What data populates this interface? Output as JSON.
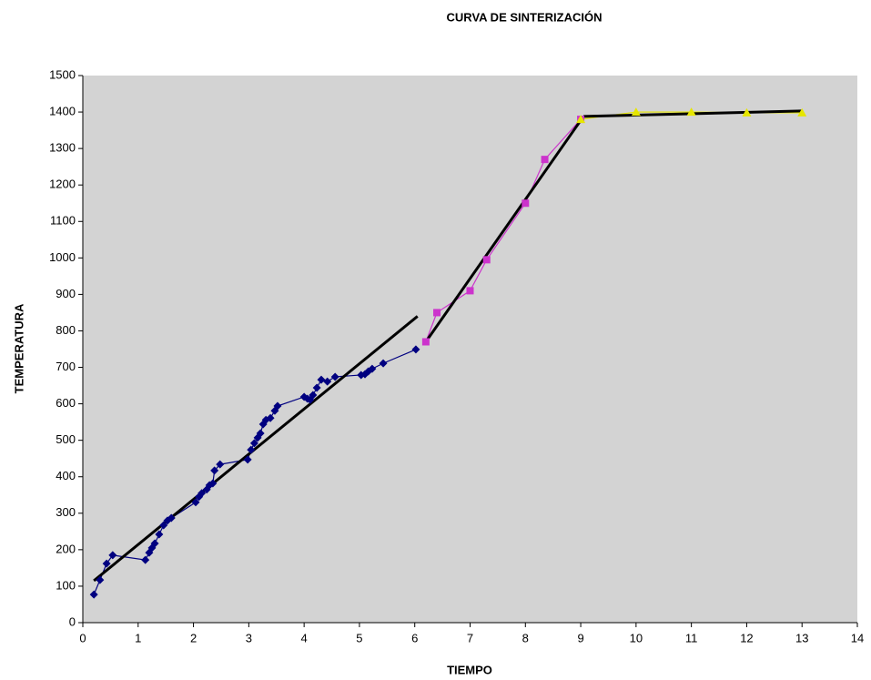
{
  "chart_data": {
    "type": "line",
    "title": "CURVA DE SINTERIZACIÓN",
    "xlabel": "TIEMPO",
    "ylabel": "TEMPERATURA",
    "xlim": [
      0,
      14
    ],
    "xticks": [
      0,
      1,
      2,
      3,
      4,
      5,
      6,
      7,
      8,
      9,
      10,
      11,
      12,
      13,
      14
    ],
    "ylim": [
      0,
      1500
    ],
    "yticks": [
      0,
      100,
      200,
      300,
      400,
      500,
      600,
      700,
      800,
      900,
      1000,
      1100,
      1200,
      1300,
      1400,
      1500
    ],
    "grid": false,
    "plot_background": "#d3d3d3",
    "series": [
      {
        "color": "#000080",
        "marker": "diamond",
        "x": [
          0.2,
          0.31,
          0.43,
          0.54,
          1.13,
          1.2,
          1.25,
          1.3,
          1.38,
          1.46,
          1.53,
          1.6,
          2.04,
          2.1,
          2.15,
          2.24,
          2.29,
          2.35,
          2.38,
          2.48,
          2.98,
          3.04,
          3.1,
          3.16,
          3.21,
          3.26,
          3.31,
          3.39,
          3.47,
          3.52,
          4.0,
          4.06,
          4.11,
          4.16,
          4.23,
          4.31,
          4.42,
          4.56,
          5.03,
          5.1,
          5.16,
          5.23,
          5.43,
          6.02
        ],
        "values": [
          77,
          117,
          162,
          185,
          172,
          192,
          205,
          217,
          242,
          267,
          280,
          287,
          330,
          345,
          355,
          365,
          377,
          382,
          417,
          434,
          447,
          474,
          492,
          507,
          519,
          544,
          556,
          561,
          581,
          594,
          619,
          614,
          611,
          624,
          644,
          666,
          661,
          674,
          679,
          681,
          689,
          696,
          711,
          749
        ]
      },
      {
        "color": "#cc33cc",
        "marker": "square",
        "x": [
          6.2,
          6.4,
          7,
          7.3,
          8,
          8.35,
          9
        ],
        "values": [
          770,
          850,
          910,
          995,
          1150,
          1270,
          1380
        ]
      },
      {
        "color": "#e6e600",
        "marker": "triangle",
        "x": [
          9,
          10,
          11,
          12,
          13
        ],
        "values": [
          1380,
          1400,
          1400,
          1398,
          1398
        ]
      }
    ],
    "trendlines": [
      {
        "color": "#000000",
        "x": [
          0.2,
          6.05
        ],
        "values": [
          115,
          840
        ]
      },
      {
        "color": "#000000",
        "x": [
          6.2,
          9.05
        ],
        "values": [
          770,
          1388
        ]
      },
      {
        "color": "#000000",
        "x": [
          9.05,
          13
        ],
        "values": [
          1388,
          1403
        ]
      }
    ]
  }
}
